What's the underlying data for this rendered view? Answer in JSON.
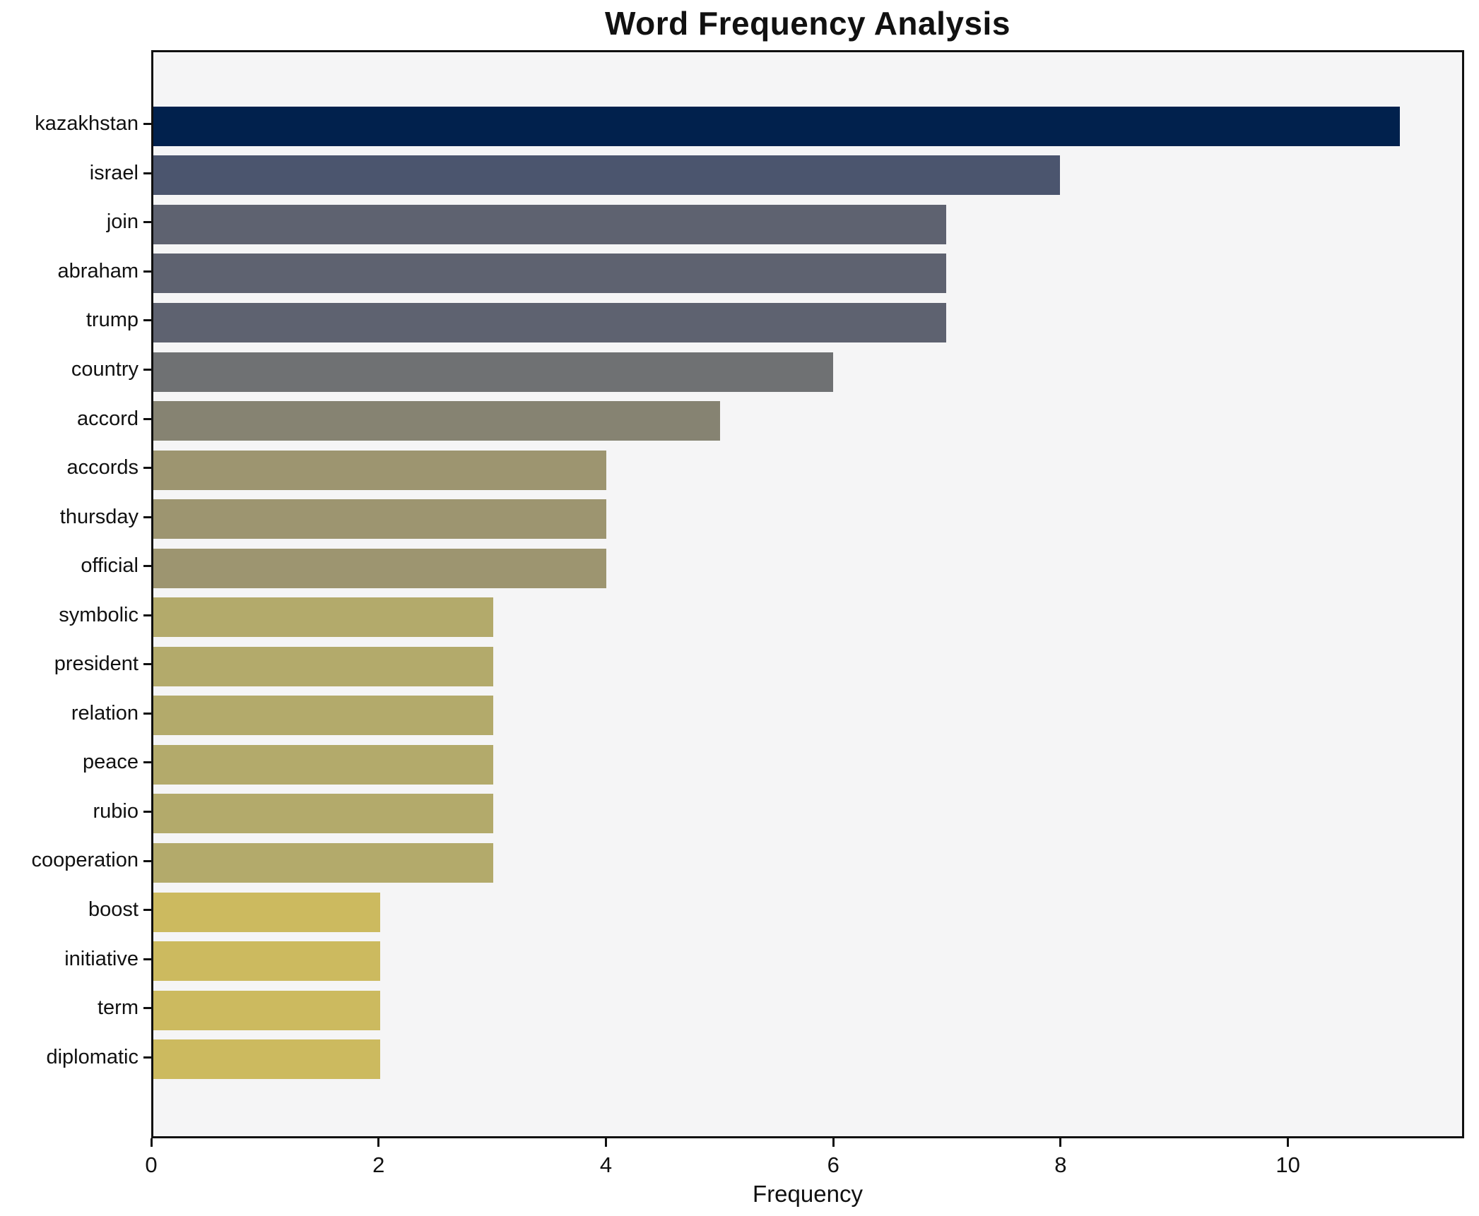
{
  "chart_data": {
    "type": "bar",
    "orientation": "horizontal",
    "title": "Word Frequency Analysis",
    "xlabel": "Frequency",
    "ylabel": "",
    "categories": [
      "kazakhstan",
      "israel",
      "join",
      "abraham",
      "trump",
      "country",
      "accord",
      "accords",
      "thursday",
      "official",
      "symbolic",
      "president",
      "relation",
      "peace",
      "rubio",
      "cooperation",
      "boost",
      "initiative",
      "term",
      "diplomatic"
    ],
    "values": [
      11,
      8,
      7,
      7,
      7,
      6,
      5,
      4,
      4,
      4,
      3,
      3,
      3,
      3,
      3,
      3,
      2,
      2,
      2,
      2
    ],
    "bar_colors": [
      "#01214d",
      "#4b556e",
      "#5e6270",
      "#5e6270",
      "#5e6270",
      "#6f7173",
      "#868372",
      "#9d9570",
      "#9d9570",
      "#9d9570",
      "#b3aa6b",
      "#b3aa6b",
      "#b3aa6b",
      "#b3aa6b",
      "#b3aa6b",
      "#b3aa6b",
      "#ccba5f",
      "#ccba5f",
      "#ccba5f",
      "#ccba5f"
    ],
    "xlim": [
      0,
      11.55
    ],
    "xticks": [
      "0",
      "2",
      "4",
      "6",
      "8",
      "10"
    ],
    "grid": false,
    "legend": false,
    "bar_height_fraction": 0.8,
    "colors": {
      "plot_background": "#f5f5f6",
      "figure_background": "#ffffff",
      "spine": "#101010",
      "text": "#111111"
    }
  }
}
